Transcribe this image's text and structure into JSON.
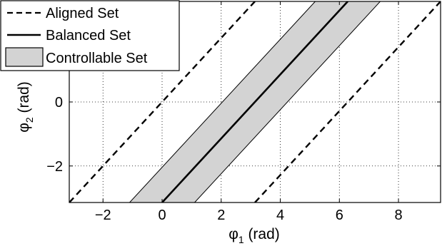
{
  "chart_data": {
    "type": "line",
    "xlabel": "φ₁ (rad)",
    "ylabel": "φ₂ (rad)",
    "xlim": [
      -3.1416,
      9.4248
    ],
    "ylim": [
      -3.1416,
      3.1416
    ],
    "x_ticks": [
      -2,
      0,
      2,
      4,
      6,
      8
    ],
    "y_ticks": [
      -2,
      0
    ],
    "x_tick_labels": [
      "−2",
      "0",
      "2",
      "4",
      "6",
      "8"
    ],
    "y_tick_labels": [
      "−2",
      "0"
    ],
    "grid": true,
    "legend_position": "top-left",
    "series": [
      {
        "name": "Aligned Set",
        "style": "dashed",
        "color": "#000000",
        "lines": [
          [
            [
              -3.1416,
              -3.1416
            ],
            [
              3.1416,
              3.1416
            ]
          ],
          [
            [
              3.1416,
              -3.1416
            ],
            [
              9.4248,
              3.1416
            ]
          ]
        ]
      },
      {
        "name": "Balanced Set",
        "style": "solid",
        "color": "#000000",
        "lines": [
          [
            [
              0.0,
              -3.1416
            ],
            [
              6.2832,
              3.1416
            ]
          ]
        ]
      },
      {
        "name": "Controllable Set",
        "style": "filled-band",
        "color": "#d3d3d3",
        "band_lower": [
          [
            1.1,
            -3.1416
          ],
          [
            7.3832,
            3.1416
          ]
        ],
        "band_upper": [
          [
            -1.1,
            -3.1416
          ],
          [
            5.1832,
            3.1416
          ]
        ]
      }
    ]
  }
}
